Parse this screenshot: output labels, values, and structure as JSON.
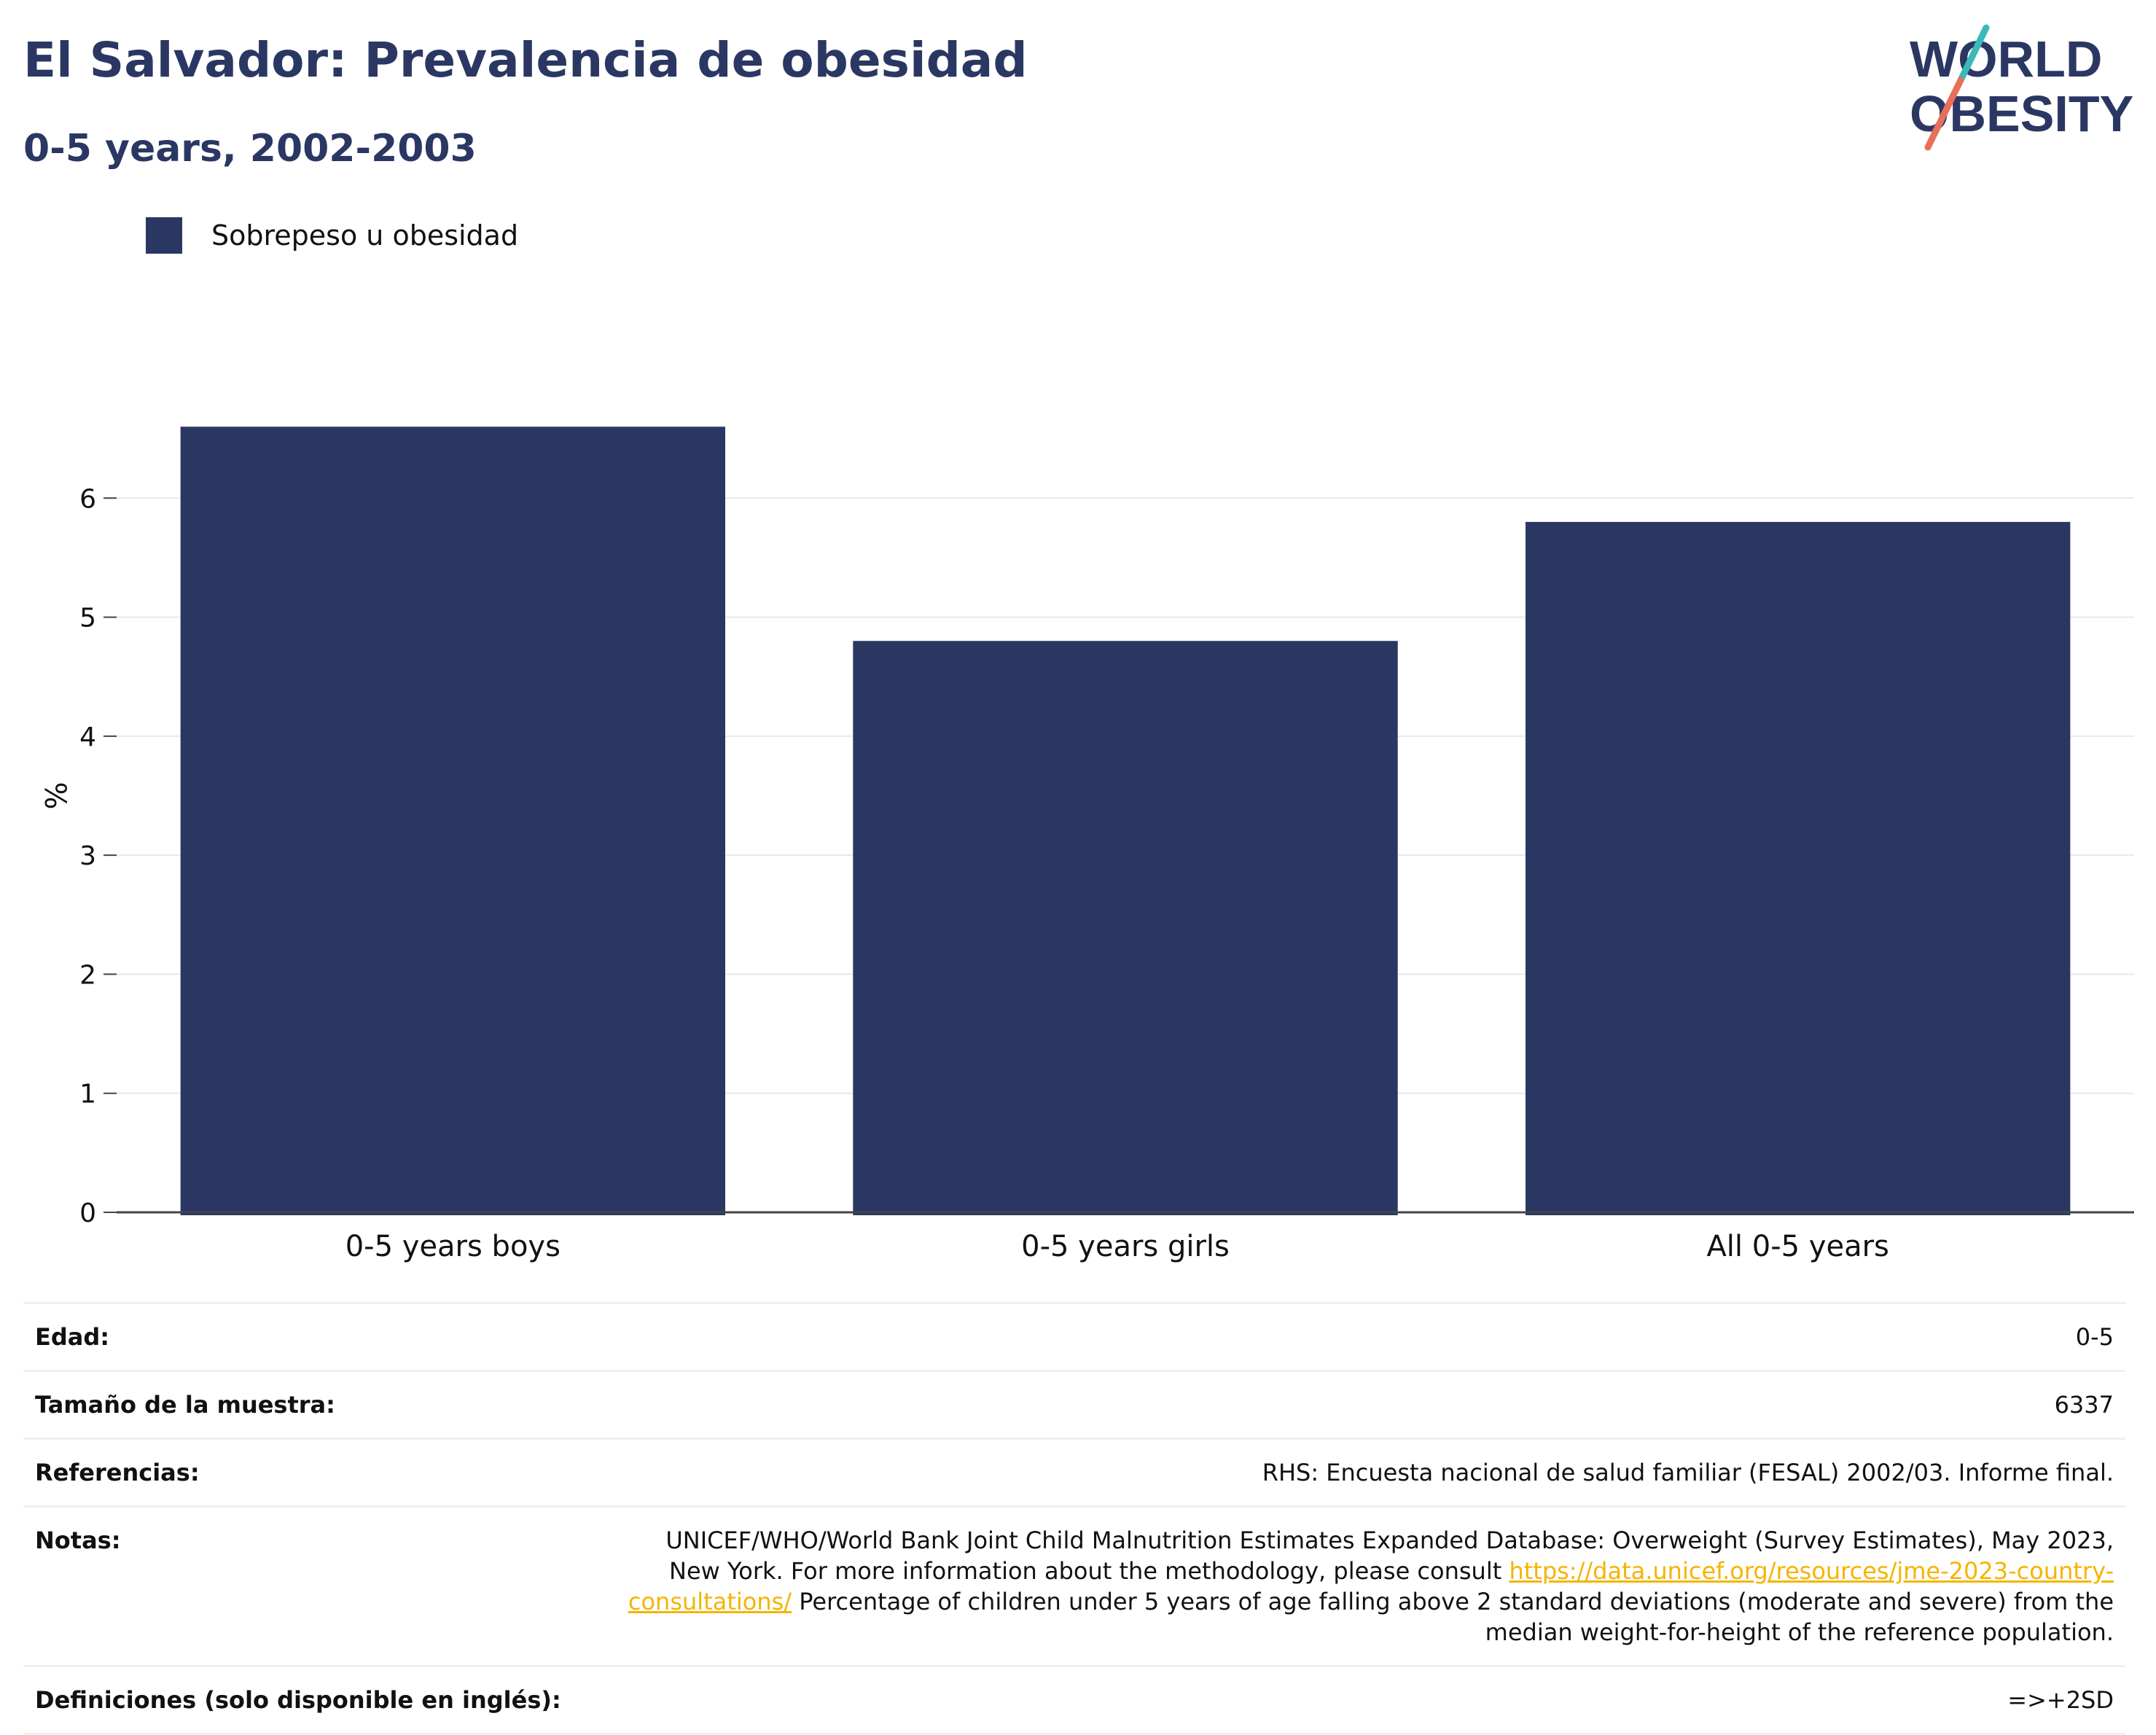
{
  "header": {
    "title": "El Salvador: Prevalencia de obesidad",
    "subtitle": "0-5 years, 2002-2003"
  },
  "logo": {
    "line1": "WORLD",
    "line2": "OBESITY",
    "colors": {
      "text": "#2b3763",
      "slash_top": "#3bb8b8",
      "slash_bottom": "#e8705a"
    }
  },
  "legend": {
    "label": "Sobrepeso u obesidad",
    "color": "#2b3763"
  },
  "chart_data": {
    "type": "bar",
    "categories": [
      "0-5 years boys",
      "0-5 years girls",
      "All 0-5 years"
    ],
    "series": [
      {
        "name": "Sobrepeso u obesidad",
        "values": [
          6.6,
          4.8,
          5.8
        ],
        "color": "#2b3763"
      }
    ],
    "ylabel": "%",
    "xlabel": "",
    "ylim": [
      0,
      7
    ],
    "yticks": [
      0,
      1,
      2,
      3,
      4,
      5,
      6
    ],
    "grid": true,
    "legend_position": "top-left"
  },
  "info": {
    "rows": [
      {
        "key": "Edad:",
        "value": "0-5"
      },
      {
        "key": "Tamaño de la muestra:",
        "value": "6337"
      },
      {
        "key": "Referencias:",
        "value": "RHS: Encuesta nacional de salud familiar (FESAL) 2002/03. Informe final."
      },
      {
        "key": "Notas:",
        "value_before_link": "UNICEF/WHO/World Bank Joint Child Malnutrition Estimates Expanded Database: Overweight (Survey Estimates), May 2023, New York. For more information about the methodology, please consult ",
        "link": "https://data.unicef.org/resources/jme-2023-country-consultations/",
        "value_after_link": " Percentage of children under 5 years of age falling above 2 standard deviations (moderate and severe) from the median weight-for-height of the reference population."
      },
      {
        "key": "Definiciones (solo disponible en inglés):",
        "value": "=>+2SD"
      }
    ]
  }
}
